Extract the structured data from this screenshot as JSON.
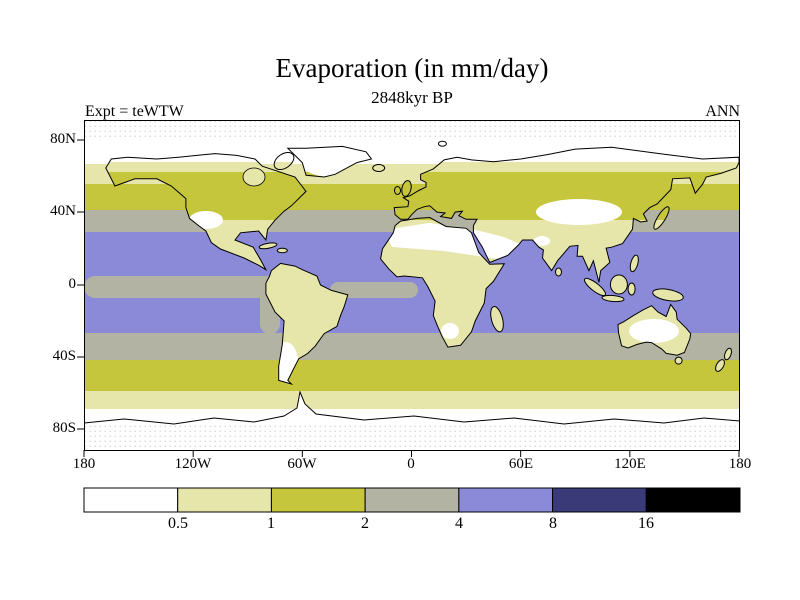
{
  "title": "Evaporation (in mm/day)",
  "subtitle": "2848kyr BP",
  "experiment_label": "Expt = teWTW",
  "season_label": "ANN",
  "axes": {
    "lat_ticks": [
      "80N",
      "40N",
      "0",
      "40S",
      "80S"
    ],
    "lon_ticks": [
      "180",
      "120W",
      "60W",
      "0",
      "60E",
      "120E",
      "180"
    ]
  },
  "colorbar": {
    "tick_labels": [
      "0.5",
      "1",
      "2",
      "4",
      "8",
      "16"
    ]
  },
  "palette": {
    "white": "#ffffff",
    "pale": "#e6e6ab",
    "olive": "#c6c63c",
    "gray": "#b3b3a3",
    "blue": "#8a8ad9",
    "navy": "#3a3a78",
    "black": "#000000",
    "coast": "#000000"
  },
  "chart_data": {
    "type": "heatmap",
    "subtype": "filled-contour global map",
    "title": "Evaporation (in mm/day)",
    "subtitle": "2848kyr BP",
    "experiment": "teWTW",
    "time_average": "ANN",
    "units": "mm/day",
    "contour_levels": [
      0.5,
      1,
      2,
      4,
      8,
      16
    ],
    "level_bins": [
      "<0.5",
      "0.5-1",
      "1-2",
      "2-4",
      "4-8",
      "8-16",
      ">16"
    ],
    "bin_colors": [
      "#ffffff",
      "#e6e6ab",
      "#c6c63c",
      "#b3b3a3",
      "#8a8ad9",
      "#3a3a78",
      "#000000"
    ],
    "x_axis": {
      "tick_labels": [
        "180",
        "120W",
        "60W",
        "0",
        "60E",
        "120E",
        "180"
      ],
      "range_deg": [
        -180,
        180
      ]
    },
    "y_axis": {
      "tick_labels": [
        "80N",
        "40N",
        "0",
        "40S",
        "80S"
      ],
      "range_deg": [
        -90,
        90
      ]
    },
    "legend_position": "bottom",
    "grid": false,
    "zonal_pattern_estimate": [
      {
        "region": "90N-70N polar",
        "value_mm_day": "<0.5"
      },
      {
        "region": "70N-57N",
        "value_mm_day": "0.5-1"
      },
      {
        "region": "57N-42N (N Atlantic / N Pacific / Europe / S Siberia)",
        "value_mm_day": "1-2"
      },
      {
        "region": "42N-30N oceans",
        "value_mm_day": "2-4"
      },
      {
        "region": "30N-27S subtropical-tropical oceans",
        "value_mm_day": "4-8"
      },
      {
        "region": "equatorial east Pacific cold tongue",
        "value_mm_day": "2-4"
      },
      {
        "region": "Sahara, Arabia, C Asia, SW North America, C Australia deserts",
        "value_mm_day": "<0.5"
      },
      {
        "region": "tropical land (Amazon, Congo, SE Asia)",
        "value_mm_day": "0.5-2"
      },
      {
        "region": "27S-41S oceans",
        "value_mm_day": "2-4"
      },
      {
        "region": "41S-57S Southern Ocean",
        "value_mm_day": "1-2"
      },
      {
        "region": "57S-68S",
        "value_mm_day": "0.5-1"
      },
      {
        "region": "68S-90S Antarctica",
        "value_mm_day": "<0.5"
      }
    ]
  }
}
